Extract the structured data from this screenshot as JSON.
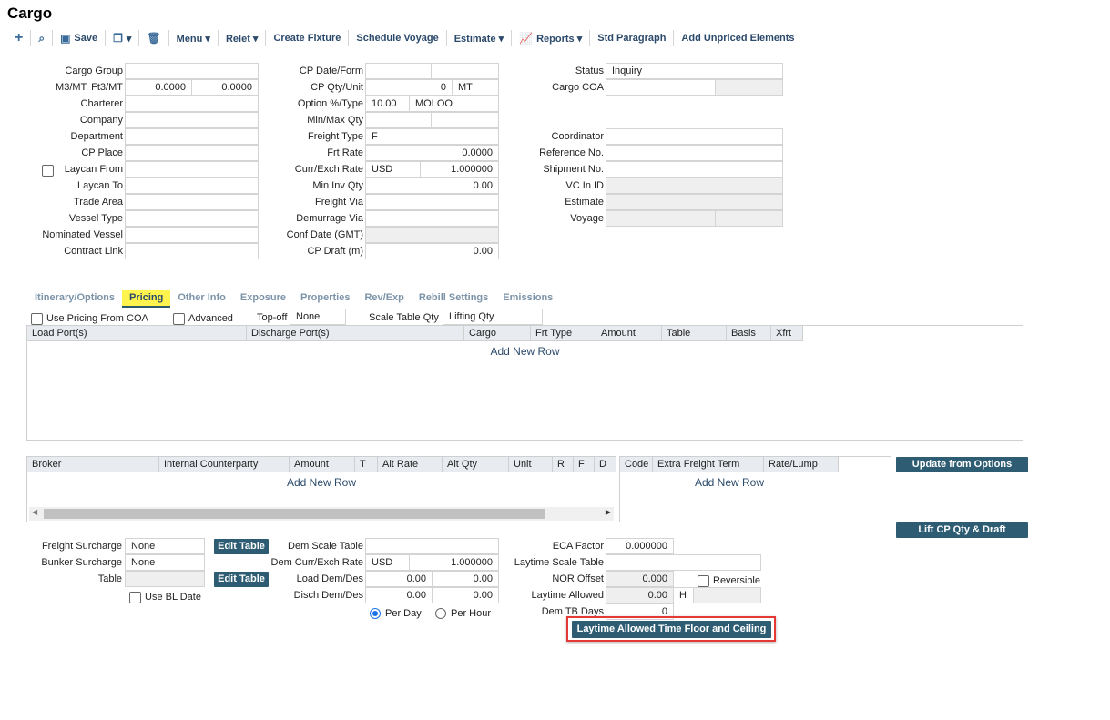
{
  "title": "Cargo",
  "toolbar": {
    "items": [
      {
        "icon": "plus-icon",
        "label": ""
      },
      {
        "icon": "search-icon",
        "label": ""
      },
      {
        "icon": "save-icon",
        "label": "Save"
      },
      {
        "icon": "copy-icon",
        "label": "▾"
      },
      {
        "icon": "trash-icon",
        "label": ""
      },
      {
        "icon": "",
        "label": "Menu ▾"
      },
      {
        "icon": "",
        "label": "Relet ▾"
      },
      {
        "icon": "",
        "label": "Create Fixture"
      },
      {
        "icon": "",
        "label": "Schedule Voyage"
      },
      {
        "icon": "",
        "label": "Estimate ▾"
      },
      {
        "icon": "chart-icon",
        "label": "Reports ▾"
      },
      {
        "icon": "",
        "label": "Std Paragraph"
      },
      {
        "icon": "",
        "label": "Add Unpriced Elements"
      }
    ]
  },
  "left_form": [
    {
      "label": "Cargo Group",
      "values": [
        ""
      ]
    },
    {
      "label": "M3/MT, Ft3/MT",
      "values": [
        "0.0000",
        "0.0000"
      ]
    },
    {
      "label": "Charterer",
      "values": [
        ""
      ]
    },
    {
      "label": "Company",
      "values": [
        ""
      ]
    },
    {
      "label": "Department",
      "values": [
        ""
      ]
    },
    {
      "label": "CP Place",
      "values": [
        ""
      ]
    },
    {
      "label": "Laycan From",
      "values": [
        ""
      ],
      "checkbox": false
    },
    {
      "label": "Laycan To",
      "values": [
        ""
      ]
    },
    {
      "label": "Trade Area",
      "values": [
        ""
      ]
    },
    {
      "label": "Vessel Type",
      "values": [
        ""
      ]
    },
    {
      "label": "Nominated Vessel",
      "values": [
        ""
      ]
    },
    {
      "label": "Contract Link",
      "values": [
        ""
      ]
    }
  ],
  "mid_form": [
    {
      "label": "CP Date/Form",
      "values": [
        "",
        ""
      ]
    },
    {
      "label": "CP Qty/Unit",
      "values": [
        "0",
        "MT"
      ]
    },
    {
      "label": "Option %/Type",
      "values": [
        "10.00",
        "MOLOO"
      ]
    },
    {
      "label": "Min/Max Qty",
      "values": [
        "",
        ""
      ]
    },
    {
      "label": "Freight Type",
      "values": [
        "F"
      ]
    },
    {
      "label": "Frt Rate",
      "values": [
        "0.0000"
      ]
    },
    {
      "label": "Curr/Exch Rate",
      "values": [
        "USD",
        "1.000000"
      ]
    },
    {
      "label": "Min Inv Qty",
      "values": [
        "0.00"
      ]
    },
    {
      "label": "Freight Via",
      "values": [
        ""
      ]
    },
    {
      "label": "Demurrage Via",
      "values": [
        ""
      ]
    },
    {
      "label": "Conf Date (GMT)",
      "values": [
        ""
      ]
    },
    {
      "label": "CP Draft (m)",
      "values": [
        "0.00"
      ]
    }
  ],
  "right_form": [
    {
      "label": "Status",
      "values": [
        "Inquiry"
      ]
    },
    {
      "label": "Cargo COA",
      "values": [
        "",
        ""
      ]
    },
    {
      "label": "Coordinator",
      "values": [
        ""
      ]
    },
    {
      "label": "Reference No.",
      "values": [
        ""
      ]
    },
    {
      "label": "Shipment No.",
      "values": [
        ""
      ]
    },
    {
      "label": "VC In ID",
      "values": [
        ""
      ]
    },
    {
      "label": "Estimate",
      "values": [
        ""
      ]
    },
    {
      "label": "Voyage",
      "values": [
        "",
        ""
      ]
    }
  ],
  "tabs": [
    {
      "label": "Itinerary/Options"
    },
    {
      "label": "Pricing",
      "active": true
    },
    {
      "label": "Other Info"
    },
    {
      "label": "Exposure"
    },
    {
      "label": "Properties"
    },
    {
      "label": "Rev/Exp"
    },
    {
      "label": "Rebill Settings"
    },
    {
      "label": "Emissions"
    }
  ],
  "pricing_opts": {
    "use_coa": "Use Pricing From COA",
    "use_coa_checked": false,
    "advanced": "Advanced",
    "advanced_checked": false,
    "topoff_label": "Top-off",
    "topoff_value": "None",
    "scale_label": "Scale Table Qty",
    "scale_value": "Lifting Qty"
  },
  "pricing_grid": {
    "columns": [
      "Load Port(s)",
      "Discharge Port(s)",
      "Cargo",
      "Frt Type",
      "Amount",
      "Table",
      "Basis",
      "Xfrt"
    ],
    "add_row": "Add New Row"
  },
  "broker_grid": {
    "columns": [
      "Broker",
      "Internal Counterparty",
      "Amount",
      "T",
      "Alt Rate",
      "Alt Qty",
      "Unit",
      "R",
      "F",
      "D"
    ],
    "add_row": "Add New Row"
  },
  "extra_grid": {
    "columns": [
      "Code",
      "Extra Freight Term",
      "Rate/Lump"
    ],
    "add_row": "Add New Row"
  },
  "buttons": {
    "update_options": "Update from Options",
    "lift_cp": "Lift CP Qty & Draft",
    "edit_table": "Edit Table",
    "laytime_floor": "Laytime Allowed Time Floor and Ceiling"
  },
  "bottom_left": [
    {
      "label": "Freight Surcharge",
      "values": [
        "None"
      ]
    },
    {
      "label": "Bunker Surcharge",
      "values": [
        "None"
      ]
    },
    {
      "label": "Table",
      "values": [
        ""
      ]
    }
  ],
  "use_bl_date": "Use BL Date",
  "bottom_mid": [
    {
      "label": "Dem Scale Table",
      "values": [
        ""
      ]
    },
    {
      "label": "Dem Curr/Exch Rate",
      "values": [
        "USD",
        "1.000000"
      ]
    },
    {
      "label": "Load Dem/Des",
      "values": [
        "0.00",
        "0.00"
      ]
    },
    {
      "label": "Disch Dem/Des",
      "values": [
        "0.00",
        "0.00"
      ]
    }
  ],
  "rate_basis": {
    "options": [
      "Per Day",
      "Per Hour"
    ],
    "selected": "Per Day"
  },
  "bottom_right": [
    {
      "label": "ECA Factor",
      "values": [
        "0.000000"
      ]
    },
    {
      "label": "Laytime Scale Table",
      "values": [
        ""
      ]
    },
    {
      "label": "NOR Offset",
      "values": [
        "0.000"
      ]
    },
    {
      "label": "Laytime Allowed",
      "values": [
        "0.00",
        "H",
        ""
      ]
    },
    {
      "label": "Dem TB Days",
      "values": [
        "0"
      ]
    }
  ],
  "reversible": "Reversible",
  "colors": {
    "accent": "#2e5d73",
    "tab_highlight": "#fff34d",
    "focus_outline": "#e53935"
  }
}
